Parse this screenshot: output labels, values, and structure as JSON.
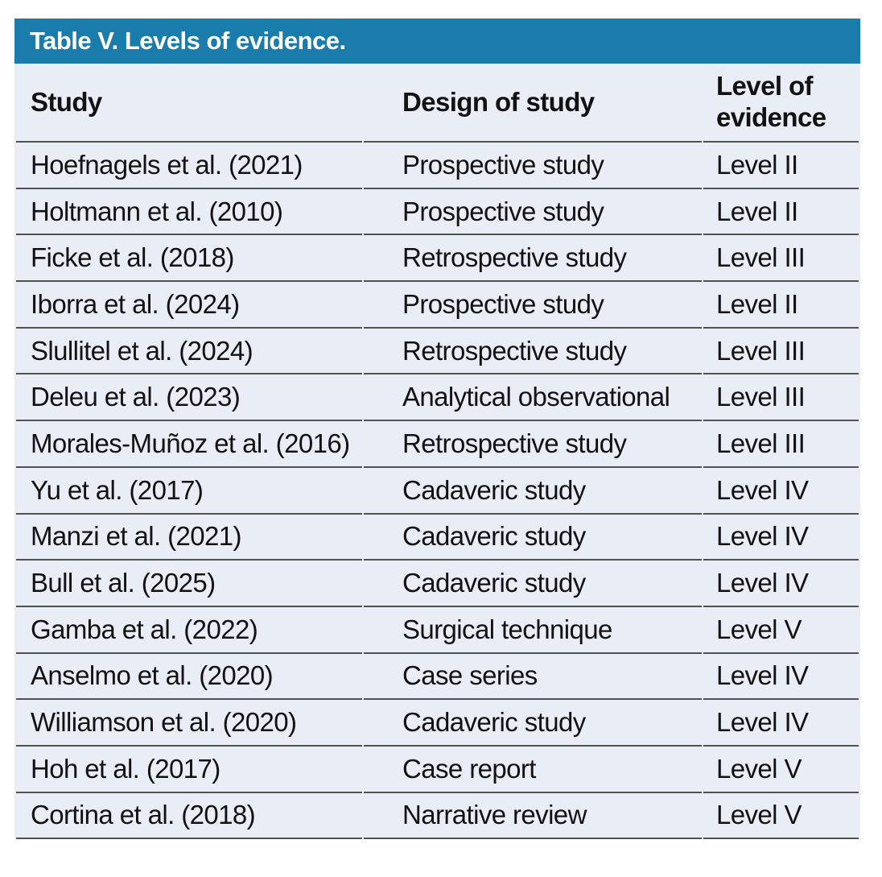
{
  "table": {
    "title": "Table V. Levels of evidence.",
    "columns": [
      "Study",
      "Design of study",
      "Level of evidence"
    ],
    "rows": [
      {
        "study": "Hoefnagels et al. (2021)",
        "design": "Prospective study",
        "level": "Level II"
      },
      {
        "study": "Holtmann et al. (2010)",
        "design": "Prospective study",
        "level": "Level II"
      },
      {
        "study": "Ficke et al. (2018)",
        "design": "Retrospective study",
        "level": "Level III"
      },
      {
        "study": "Iborra et al. (2024)",
        "design": "Prospective study",
        "level": "Level II"
      },
      {
        "study": "Slullitel et al. (2024)",
        "design": "Retrospective study",
        "level": "Level III"
      },
      {
        "study": "Deleu et al. (2023)",
        "design": "Analytical observational",
        "level": "Level III"
      },
      {
        "study": "Morales-Muñoz et al. (2016)",
        "design": "Retrospective study",
        "level": "Level III"
      },
      {
        "study": "Yu et al. (2017)",
        "design": "Cadaveric study",
        "level": "Level IV"
      },
      {
        "study": "Manzi et al. (2021)",
        "design": "Cadaveric study",
        "level": "Level IV"
      },
      {
        "study": "Bull et al. (2025)",
        "design": "Cadaveric study",
        "level": "Level IV"
      },
      {
        "study": "Gamba et al. (2022)",
        "design": "Surgical technique",
        "level": "Level V"
      },
      {
        "study": "Anselmo et al. (2020)",
        "design": "Case series",
        "level": "Level IV"
      },
      {
        "study": "Williamson et al. (2020)",
        "design": "Cadaveric study",
        "level": "Level IV"
      },
      {
        "study": "Hoh et al. (2017)",
        "design": "Case report",
        "level": "Level V"
      },
      {
        "study": "Cortina et al. (2018)",
        "design": "Narrative review",
        "level": "Level V"
      }
    ]
  },
  "colors": {
    "title_bg": "#1A7CAB",
    "title_text": "#FFFFFF",
    "body_bg": "#E9EDF6",
    "rule": "#515151",
    "text": "#121212"
  }
}
